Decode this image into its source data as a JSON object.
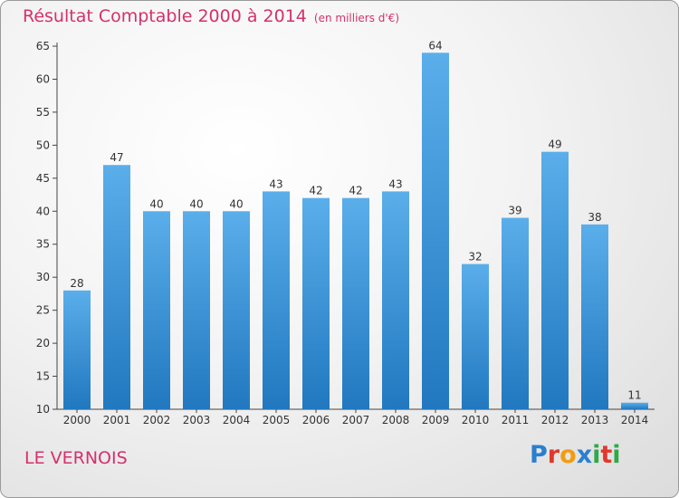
{
  "header": {
    "title": "Résultat Comptable 2000 à 2014",
    "subtitle": "(en milliers d'€)"
  },
  "footer": {
    "place": "LE VERNOIS",
    "logo": "Proxiti",
    "logo_colors": [
      "#2a7fd0",
      "#e0392b",
      "#f39c12",
      "#2a7fd0",
      "#2eaa48",
      "#e0392b",
      "#2eaa48"
    ]
  },
  "colors": {
    "accent": "#d4316b",
    "bar_top": "#5aaeea",
    "bar_bottom": "#2178bf"
  },
  "chart_data": {
    "type": "bar",
    "categories": [
      "2000",
      "2001",
      "2002",
      "2003",
      "2004",
      "2005",
      "2006",
      "2007",
      "2008",
      "2009",
      "2010",
      "2011",
      "2012",
      "2013",
      "2014"
    ],
    "values": [
      28,
      47,
      40,
      40,
      40,
      43,
      42,
      42,
      43,
      64,
      32,
      39,
      49,
      38,
      11
    ],
    "ylim": [
      10,
      65
    ],
    "yticks": [
      10,
      15,
      20,
      25,
      30,
      35,
      40,
      45,
      50,
      55,
      60,
      65
    ],
    "grid": false,
    "legend": "none"
  }
}
